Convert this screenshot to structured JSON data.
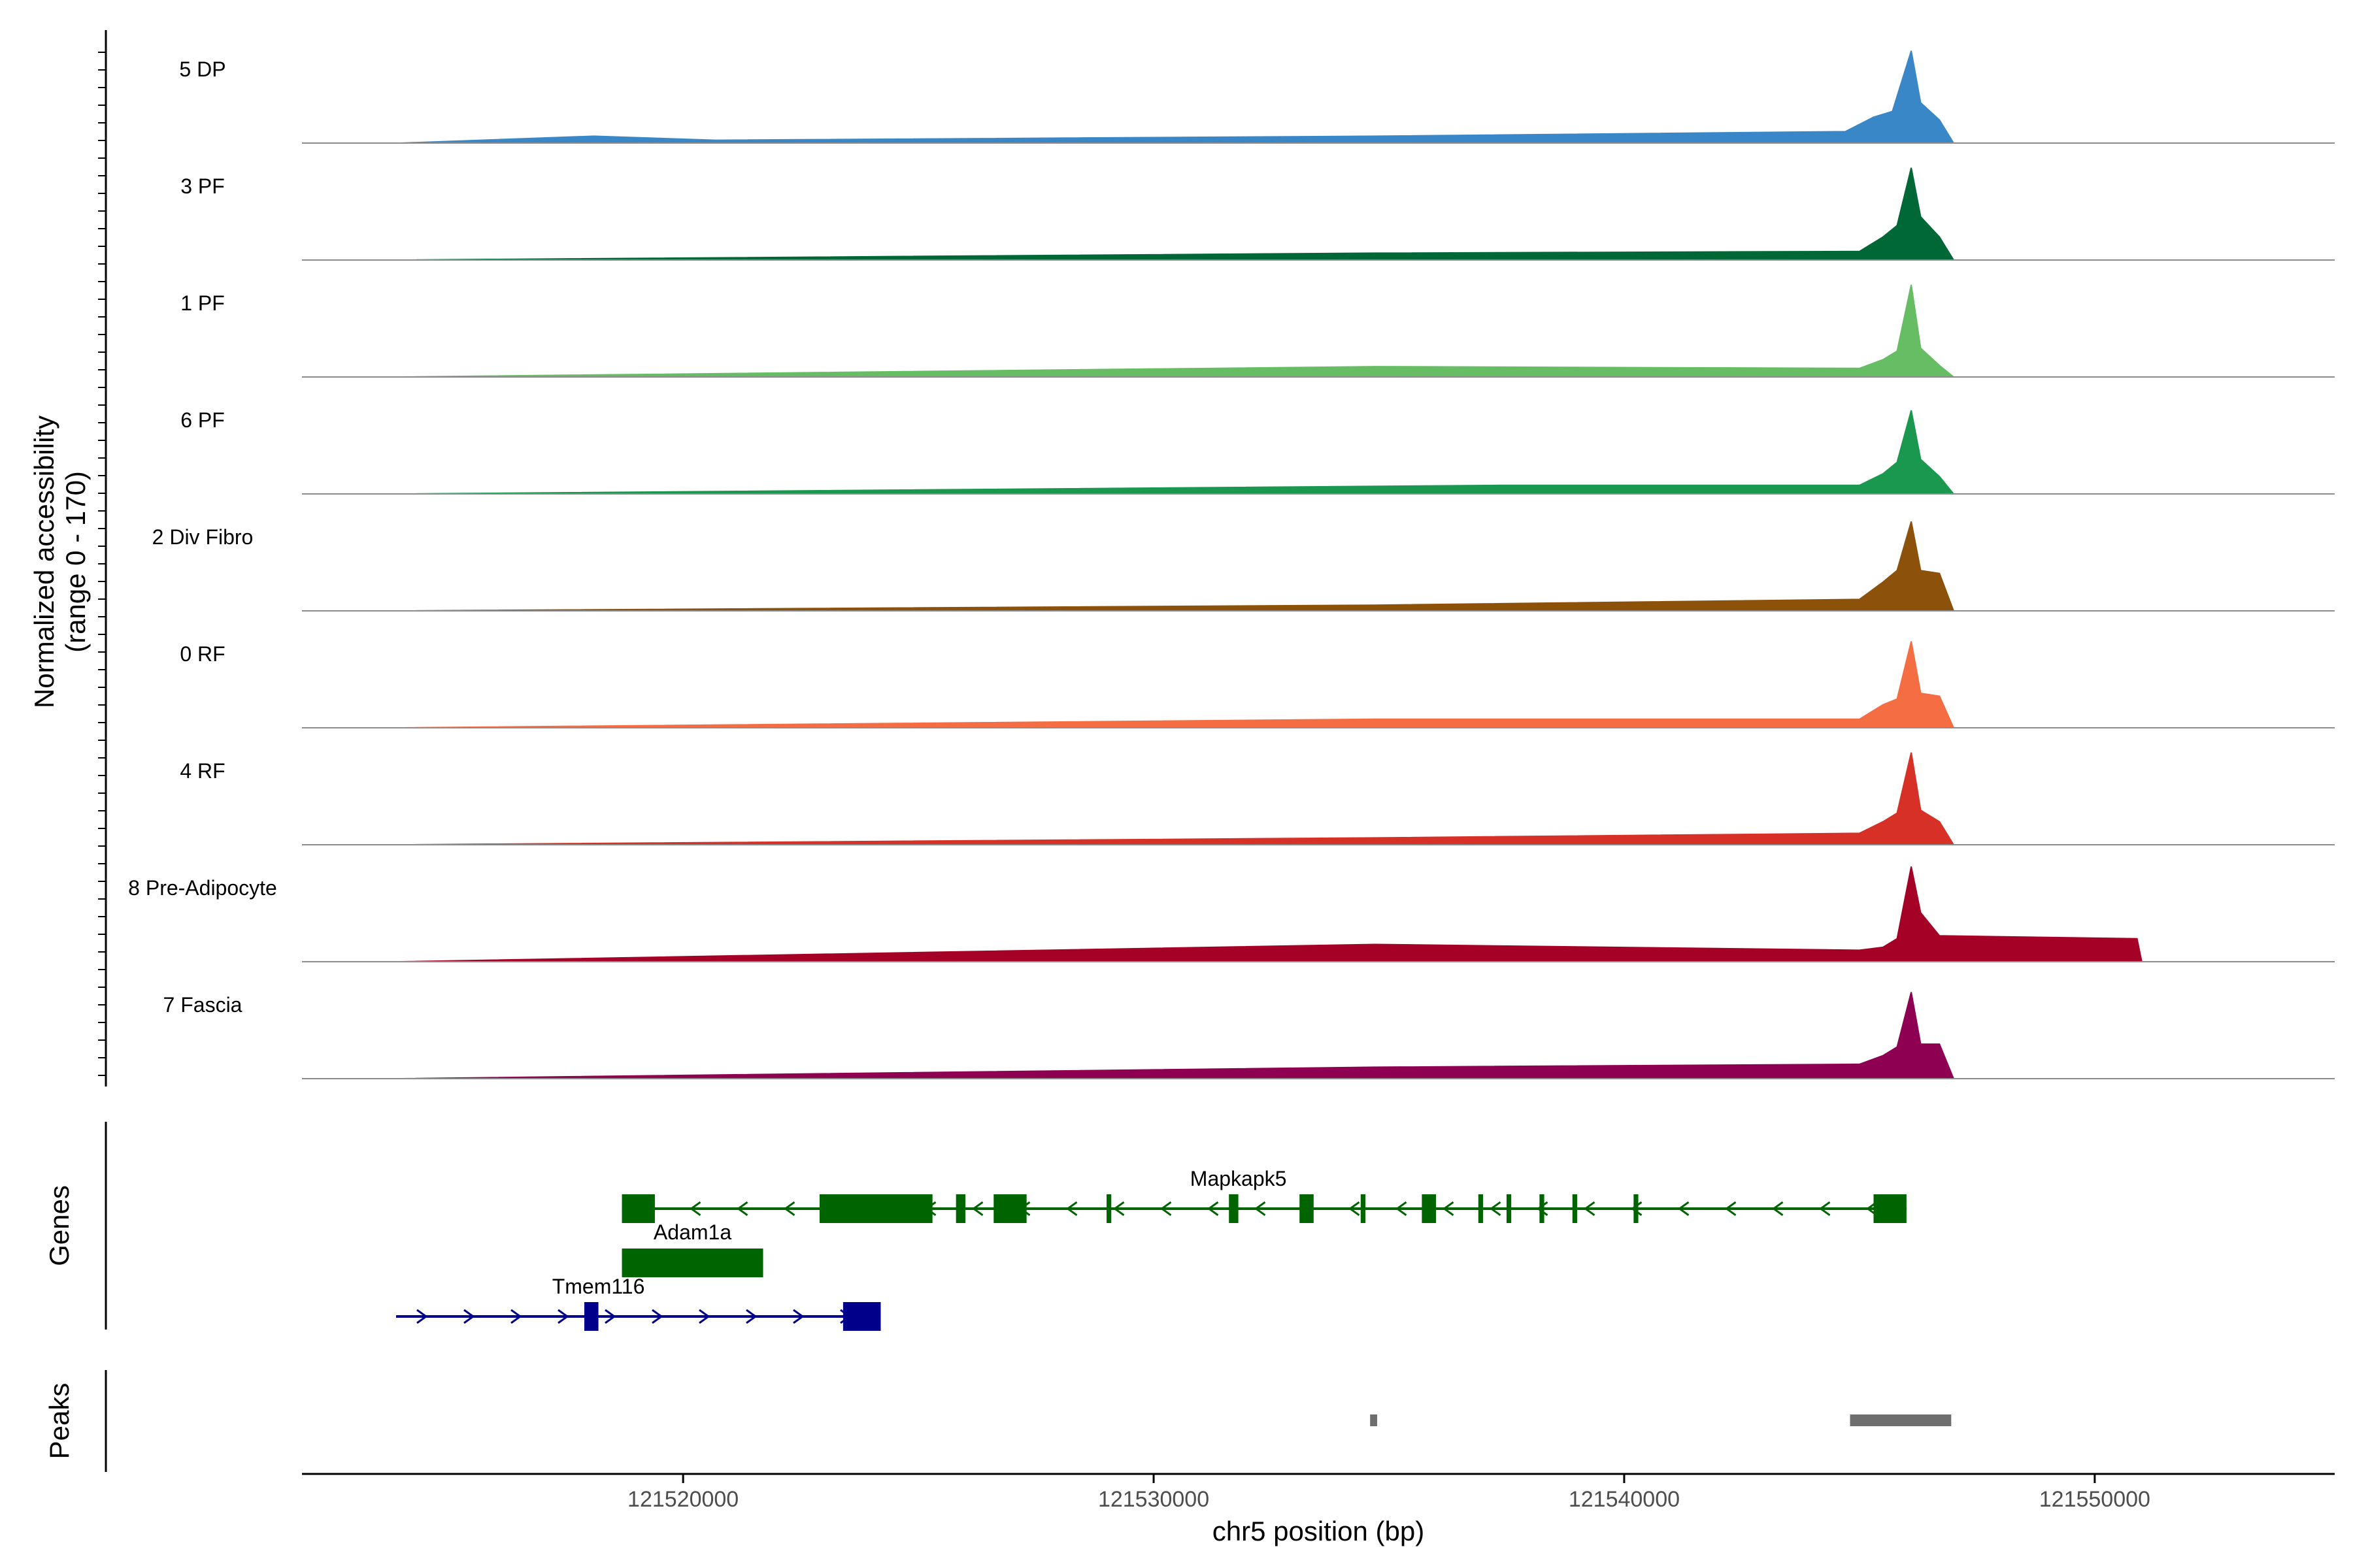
{
  "chart_data": {
    "type": "area",
    "title": "",
    "ylabel_line1": "Normalized accessibility",
    "ylabel_line2": "(range 0 - 170)",
    "ylim": [
      0,
      170
    ],
    "xlabel": "chr5 position (bp)",
    "xlim": [
      121511900,
      121555100
    ],
    "xticks": [
      {
        "value": 121520000,
        "label": "121520000"
      },
      {
        "value": 121530000,
        "label": "121530000"
      },
      {
        "value": 121540000,
        "label": "121540000"
      },
      {
        "value": 121550000,
        "label": "121550000"
      }
    ],
    "tracks": [
      {
        "name": "5 DP",
        "color": "#3A87C8",
        "data": [
          [
            121514000,
            0
          ],
          [
            121518100,
            12
          ],
          [
            121520700,
            5
          ],
          [
            121534700,
            12
          ],
          [
            121544700,
            20
          ],
          [
            121545300,
            45
          ],
          [
            121545700,
            55
          ],
          [
            121546100,
            160
          ],
          [
            121546300,
            70
          ],
          [
            121546700,
            40
          ],
          [
            121547000,
            0
          ]
        ]
      },
      {
        "name": "3 PF",
        "color": "#006837",
        "data": [
          [
            121514000,
            0
          ],
          [
            121534700,
            12
          ],
          [
            121545000,
            15
          ],
          [
            121545500,
            40
          ],
          [
            121545800,
            60
          ],
          [
            121546100,
            160
          ],
          [
            121546300,
            75
          ],
          [
            121546700,
            40
          ],
          [
            121547000,
            0
          ]
        ]
      },
      {
        "name": "1 PF",
        "color": "#66BD63",
        "data": [
          [
            121514000,
            0
          ],
          [
            121534700,
            18
          ],
          [
            121545000,
            15
          ],
          [
            121545500,
            30
          ],
          [
            121545800,
            45
          ],
          [
            121546100,
            160
          ],
          [
            121546300,
            50
          ],
          [
            121546700,
            20
          ],
          [
            121547000,
            0
          ]
        ]
      },
      {
        "name": "6 PF",
        "color": "#1A9850",
        "data": [
          [
            121514000,
            0
          ],
          [
            121537400,
            15
          ],
          [
            121545000,
            15
          ],
          [
            121545500,
            35
          ],
          [
            121545800,
            55
          ],
          [
            121546100,
            145
          ],
          [
            121546300,
            60
          ],
          [
            121546700,
            30
          ],
          [
            121547000,
            0
          ]
        ]
      },
      {
        "name": "2 Div Fibro",
        "color": "#8C510A",
        "data": [
          [
            121514000,
            0
          ],
          [
            121534700,
            10
          ],
          [
            121545000,
            20
          ],
          [
            121545500,
            50
          ],
          [
            121545800,
            70
          ],
          [
            121546100,
            155
          ],
          [
            121546300,
            70
          ],
          [
            121546700,
            65
          ],
          [
            121547000,
            0
          ]
        ]
      },
      {
        "name": "0 RF",
        "color": "#F46D43",
        "data": [
          [
            121514000,
            0
          ],
          [
            121534700,
            15
          ],
          [
            121545000,
            15
          ],
          [
            121545500,
            40
          ],
          [
            121545800,
            50
          ],
          [
            121546100,
            150
          ],
          [
            121546300,
            60
          ],
          [
            121546700,
            55
          ],
          [
            121547000,
            0
          ]
        ]
      },
      {
        "name": "4 RF",
        "color": "#D73027",
        "data": [
          [
            121514000,
            0
          ],
          [
            121534700,
            12
          ],
          [
            121545000,
            20
          ],
          [
            121545500,
            40
          ],
          [
            121545800,
            55
          ],
          [
            121546100,
            160
          ],
          [
            121546300,
            60
          ],
          [
            121546700,
            40
          ],
          [
            121547000,
            0
          ]
        ]
      },
      {
        "name": "8 Pre-Adipocyte",
        "color": "#A50026",
        "data": [
          [
            121514000,
            0
          ],
          [
            121534700,
            30
          ],
          [
            121545000,
            20
          ],
          [
            121545500,
            25
          ],
          [
            121545800,
            40
          ],
          [
            121546100,
            165
          ],
          [
            121546300,
            85
          ],
          [
            121546700,
            45
          ],
          [
            121550900,
            40
          ],
          [
            121551000,
            0
          ]
        ]
      },
      {
        "name": "7 Fascia",
        "color": "#8E0152",
        "data": [
          [
            121514000,
            0
          ],
          [
            121534700,
            20
          ],
          [
            121545000,
            25
          ],
          [
            121545500,
            40
          ],
          [
            121545800,
            55
          ],
          [
            121546100,
            150
          ],
          [
            121546300,
            60
          ],
          [
            121546700,
            60
          ],
          [
            121547000,
            0
          ]
        ]
      }
    ],
    "genes_panel_title": "Genes",
    "genes": [
      {
        "name": "Mapkapk5",
        "strand": "-",
        "color": "#006400",
        "start": 121518700,
        "end": 121546000,
        "exons": [
          [
            121518700,
            121519400
          ],
          [
            121522900,
            121525300
          ],
          [
            121525800,
            121526000
          ],
          [
            121526600,
            121527300
          ],
          [
            121529000,
            121529100
          ],
          [
            121531600,
            121531800
          ],
          [
            121533100,
            121533400
          ],
          [
            121534400,
            121534500
          ],
          [
            121535700,
            121536000
          ],
          [
            121536900,
            121537000
          ],
          [
            121537500,
            121537600
          ],
          [
            121538200,
            121538300
          ],
          [
            121538900,
            121539000
          ],
          [
            121540200,
            121540300
          ],
          [
            121545300,
            121546000
          ]
        ]
      },
      {
        "name": "Adam1a",
        "strand": "-",
        "color": "#006400",
        "start": 121518700,
        "end": 121521700,
        "exons": [
          [
            121518700,
            121521700
          ]
        ]
      },
      {
        "name": "Tmem116",
        "strand": "+",
        "color": "#00008B",
        "start": 121513900,
        "end": 121524200,
        "exons": [
          [
            121517900,
            121518200
          ],
          [
            121523400,
            121524200
          ]
        ]
      }
    ],
    "peaks_panel_title": "Peaks",
    "peaks": [
      [
        121534600,
        121534750
      ],
      [
        121544800,
        121546950
      ]
    ]
  }
}
